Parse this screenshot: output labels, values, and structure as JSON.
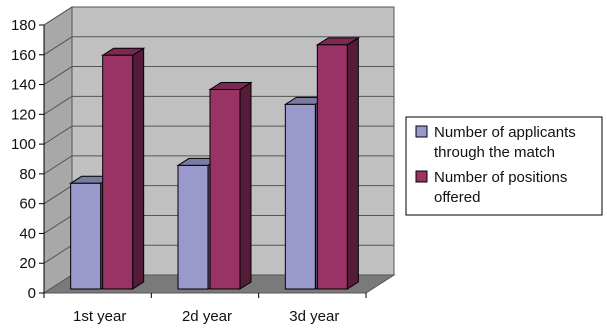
{
  "chart_data": {
    "type": "bar",
    "title": "",
    "xlabel": "",
    "ylabel": "",
    "categories": [
      "1st year",
      "2d year",
      "3d year"
    ],
    "series": [
      {
        "name": "Number of applicants through the match",
        "values": [
          71,
          83,
          124
        ],
        "color": "#9999cc"
      },
      {
        "name": "Number of positions offered",
        "values": [
          157,
          134,
          164
        ],
        "color": "#993366"
      }
    ],
    "ylim": [
      0,
      180
    ],
    "yticks": [
      0,
      20,
      40,
      60,
      80,
      100,
      120,
      140,
      160,
      180
    ],
    "grid": true,
    "style": "3d",
    "legend": "right",
    "legend_lines": [
      [
        "Number of applicants",
        "through the match"
      ],
      [
        "Number of positions",
        "offered"
      ]
    ]
  }
}
